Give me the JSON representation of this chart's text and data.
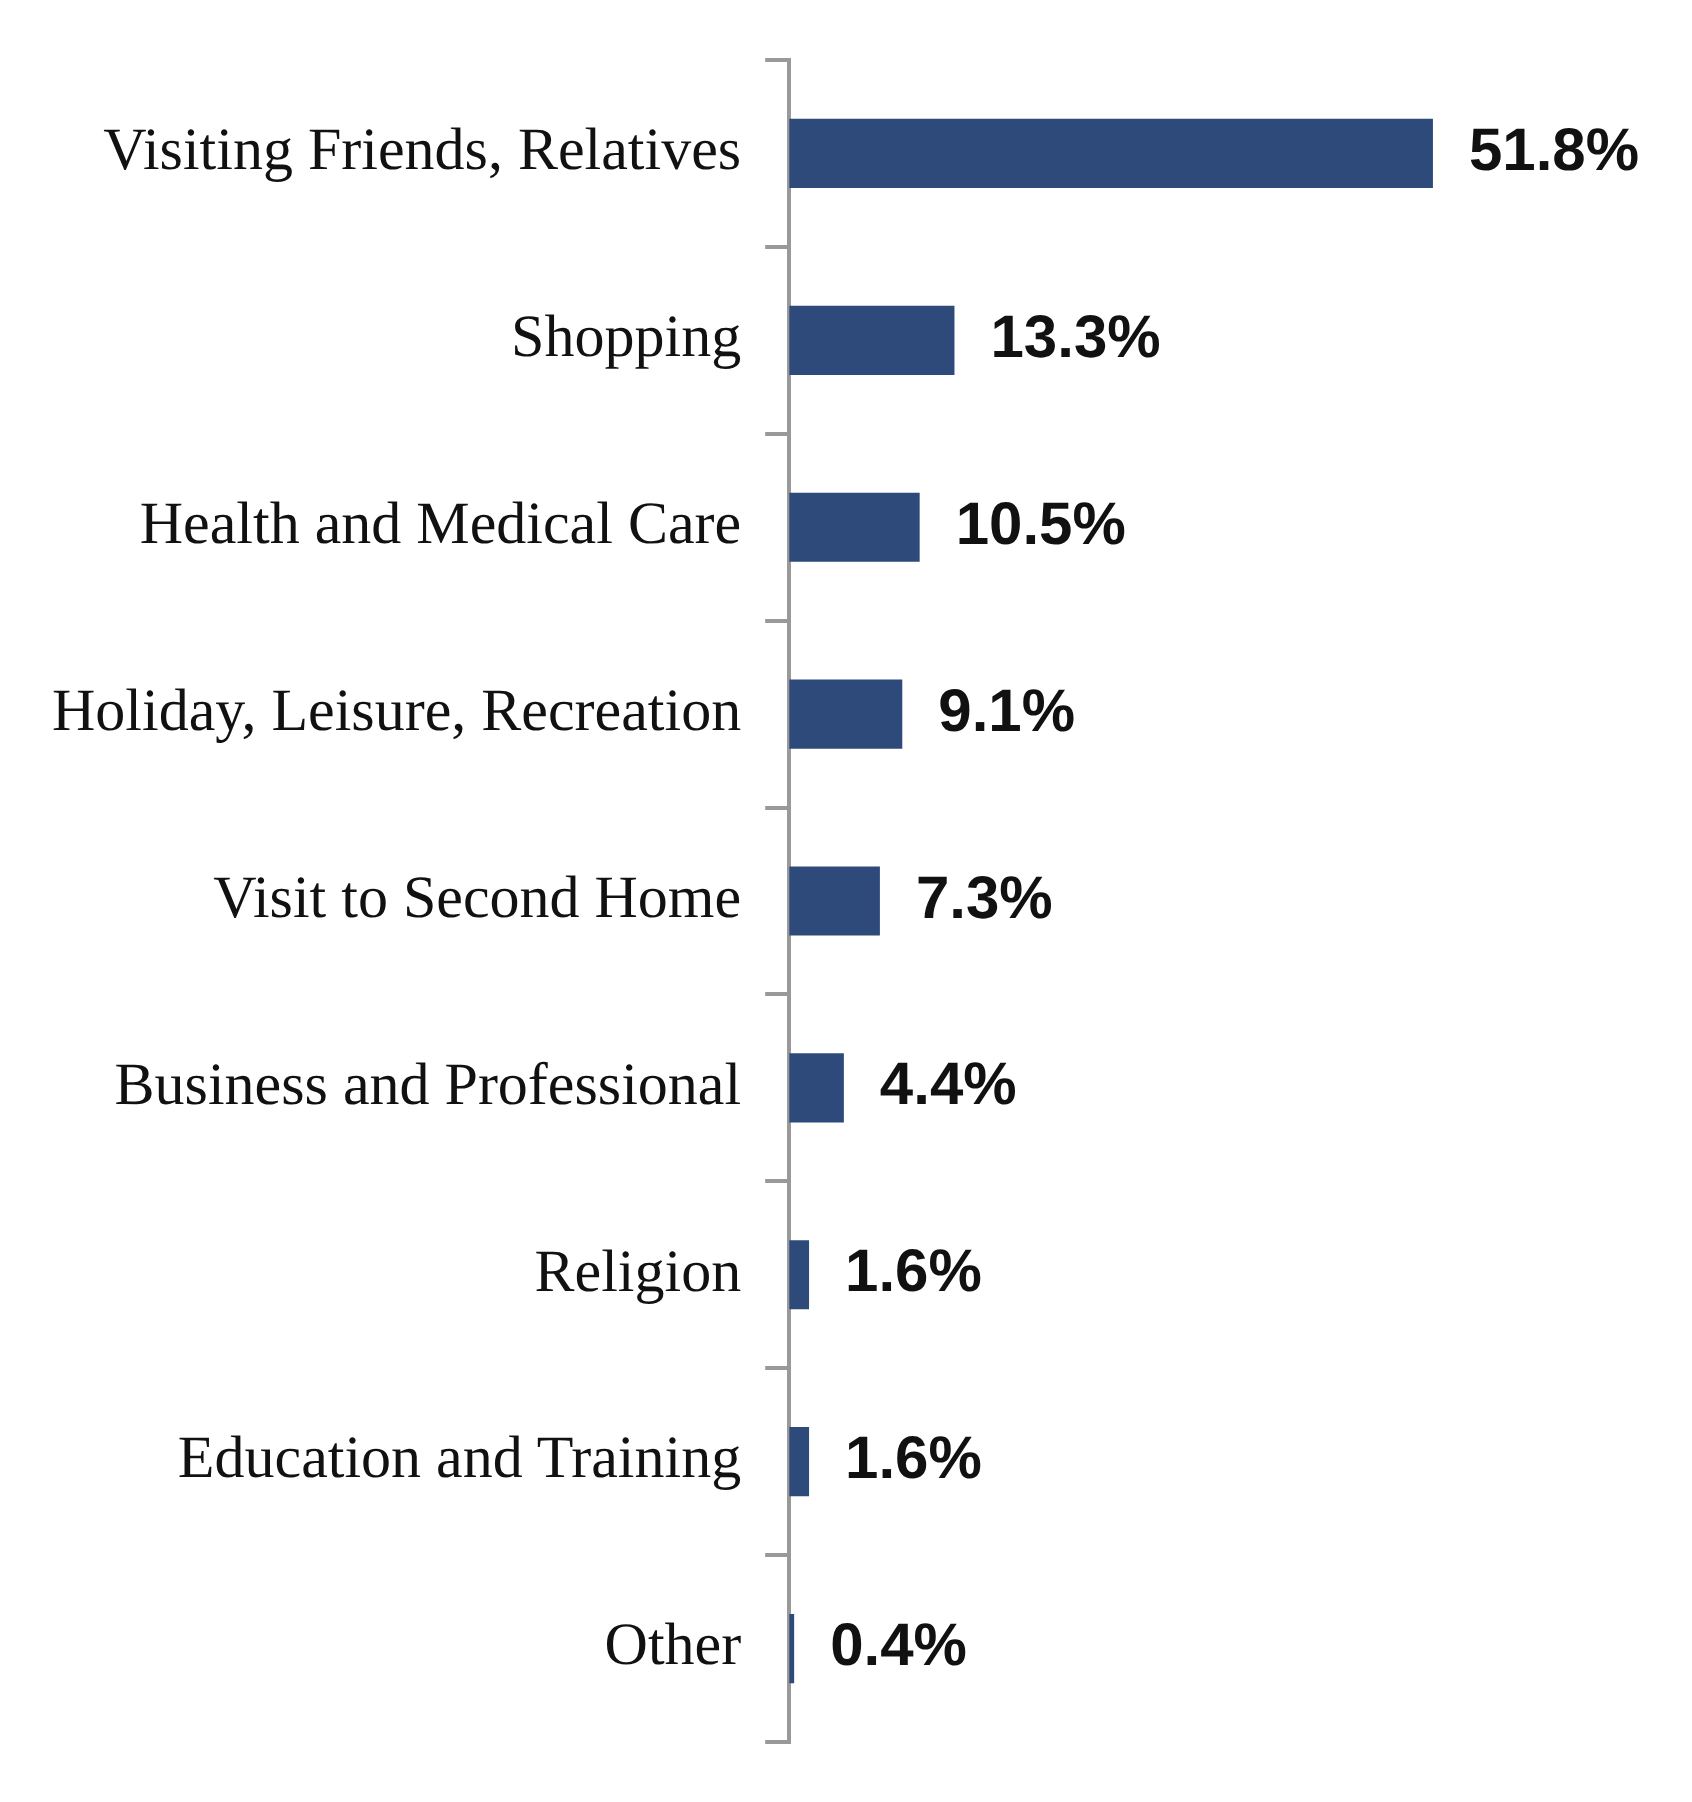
{
  "chart_data": {
    "type": "bar",
    "orientation": "horizontal",
    "categories": [
      "Visiting Friends, Relatives",
      "Shopping",
      "Health and Medical Care",
      "Holiday, Leisure, Recreation",
      "Visit to Second Home",
      "Business and Professional",
      "Religion",
      "Education and Training",
      "Other"
    ],
    "values": [
      51.8,
      13.3,
      10.5,
      9.1,
      7.3,
      4.4,
      1.6,
      1.6,
      0.4
    ],
    "value_labels": [
      "51.8%",
      "13.3%",
      "10.5%",
      "9.1%",
      "7.3%",
      "4.4%",
      "1.6%",
      "1.6%",
      "0.4%"
    ],
    "color": "#2e4a7a",
    "grid": false,
    "legend": false
  }
}
